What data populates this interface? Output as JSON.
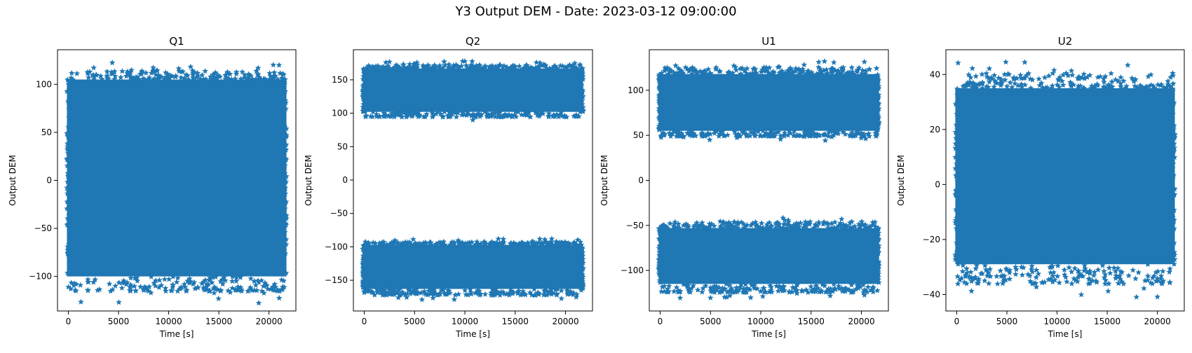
{
  "figure": {
    "suptitle": "Y3 Output DEM - Date: 2023-03-12 09:00:00"
  },
  "colors": {
    "marker": "#1f77b4",
    "axes": "#000000",
    "background": "#ffffff"
  },
  "chart_data": [
    {
      "type": "scatter",
      "title": "Q1",
      "xlabel": "Time [s]",
      "ylabel": "Output DEM",
      "xlim": [
        -1080,
        22680
      ],
      "ylim": [
        -136,
        136
      ],
      "xticks": [
        0,
        5000,
        10000,
        15000,
        20000
      ],
      "yticks": [
        -100,
        -50,
        0,
        50,
        100
      ],
      "marker": "star",
      "grid": false,
      "x_range": [
        0,
        21600
      ],
      "bands": [
        {
          "core": [
            -100,
            105
          ],
          "outliers": [
            -128,
            123
          ]
        }
      ]
    },
    {
      "type": "scatter",
      "title": "Q2",
      "xlabel": "Time [s]",
      "ylabel": "Output DEM",
      "xlim": [
        -1080,
        22680
      ],
      "ylim": [
        -196,
        195
      ],
      "xticks": [
        0,
        5000,
        10000,
        15000,
        20000
      ],
      "yticks": [
        -150,
        -100,
        -50,
        0,
        50,
        100,
        150
      ],
      "marker": "star",
      "grid": false,
      "x_range": [
        0,
        21600
      ],
      "bands": [
        {
          "core": [
            102,
            167
          ],
          "outliers": [
            88,
            178
          ]
        },
        {
          "core": [
            -163,
            -97
          ],
          "outliers": [
            -180,
            -88
          ]
        }
      ]
    },
    {
      "type": "scatter",
      "title": "U1",
      "xlabel": "Time [s]",
      "ylabel": "Output DEM",
      "xlim": [
        -1080,
        22680
      ],
      "ylim": [
        -145,
        145
      ],
      "xticks": [
        0,
        5000,
        10000,
        15000,
        20000
      ],
      "yticks": [
        -100,
        -50,
        0,
        50,
        100
      ],
      "marker": "star",
      "grid": false,
      "x_range": [
        0,
        21600
      ],
      "bands": [
        {
          "core": [
            55,
            118
          ],
          "outliers": [
            44,
            133
          ]
        },
        {
          "core": [
            -115,
            -53
          ],
          "outliers": [
            -132,
            -40
          ]
        }
      ]
    },
    {
      "type": "scatter",
      "title": "U2",
      "xlabel": "Time [s]",
      "ylabel": "Output DEM",
      "xlim": [
        -1080,
        22680
      ],
      "ylim": [
        -46,
        49
      ],
      "xticks": [
        0,
        5000,
        10000,
        15000,
        20000
      ],
      "yticks": [
        -40,
        -20,
        0,
        20,
        40
      ],
      "marker": "star",
      "grid": false,
      "x_range": [
        0,
        21600
      ],
      "bands": [
        {
          "core": [
            -29,
            35
          ],
          "outliers": [
            -42,
            45
          ]
        }
      ]
    }
  ]
}
